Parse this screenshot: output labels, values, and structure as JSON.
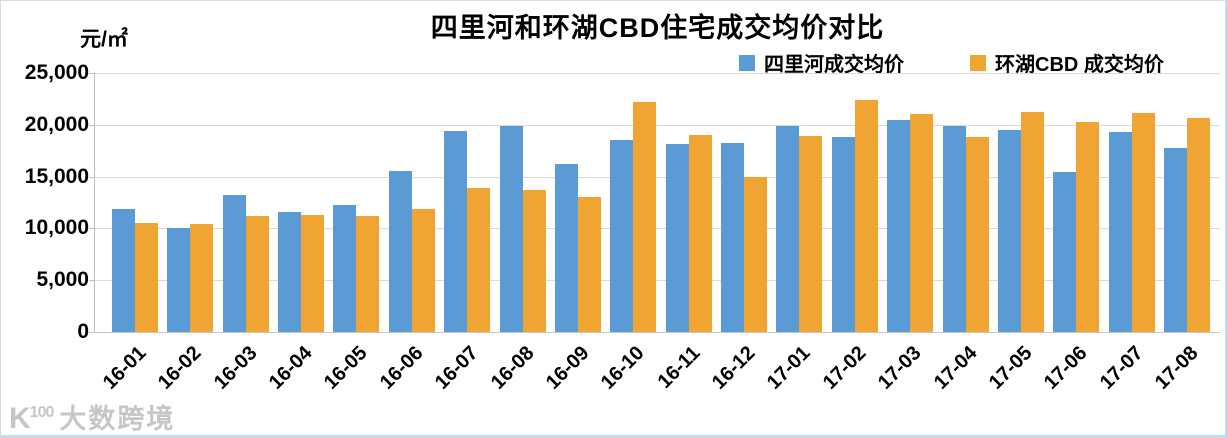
{
  "chart_data": {
    "type": "bar",
    "title": "四里河和环湖CBD住宅成交均价对比",
    "unit_label": "元/㎡",
    "categories": [
      "16-01",
      "16-02",
      "16-03",
      "16-04",
      "16-05",
      "16-06",
      "16-07",
      "16-08",
      "16-09",
      "16-10",
      "16-11",
      "16-12",
      "17-01",
      "17-02",
      "17-03",
      "17-04",
      "17-05",
      "17-06",
      "17-07",
      "17-08"
    ],
    "series": [
      {
        "name": "四里河成交均价",
        "color": "#5B9BD5",
        "values": [
          11900,
          10000,
          13200,
          11600,
          12300,
          15500,
          19400,
          19900,
          16200,
          18500,
          18100,
          18200,
          19900,
          18800,
          20500,
          19900,
          19500,
          15400,
          19300,
          17800
        ]
      },
      {
        "name": "环湖CBD 成交均价",
        "color": "#F0A431",
        "values": [
          10500,
          10400,
          11200,
          11300,
          11200,
          11900,
          13900,
          13700,
          13000,
          22200,
          19000,
          15000,
          18900,
          22400,
          21000,
          18800,
          21200,
          20300,
          21100,
          20700
        ]
      }
    ],
    "ylim": [
      0,
      25000
    ],
    "yticks": [
      0,
      5000,
      10000,
      15000,
      20000,
      25000
    ],
    "ytick_labels": [
      "0",
      "5,000",
      "10,000",
      "15,000",
      "20,000",
      "25,000"
    ],
    "grid": true,
    "legend_position": "top-right",
    "xlabel": "",
    "ylabel": ""
  },
  "watermark": {
    "logo": "K",
    "logo_sup": "100",
    "text": "大数跨境"
  },
  "colors": {
    "series_blue": "#5B9BD5",
    "series_orange": "#F0A431",
    "gridline": "#d9d9d9",
    "edge_border": "#c5d9f1"
  }
}
